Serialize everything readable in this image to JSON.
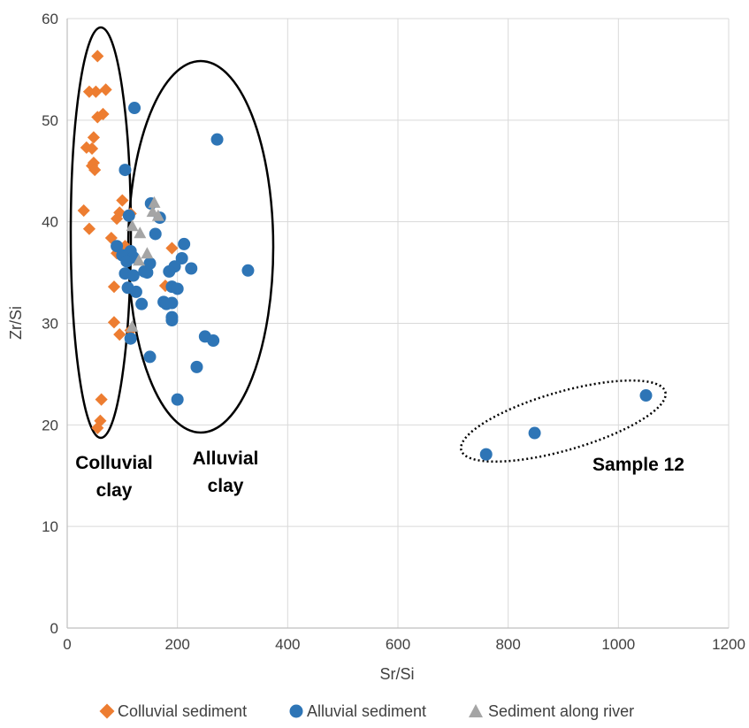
{
  "chart_data": {
    "type": "scatter",
    "xlabel": "Sr/Si",
    "ylabel": "Zr/Si",
    "xlim": [
      0,
      1200
    ],
    "ylim": [
      0,
      60
    ],
    "xticks": [
      0,
      200,
      400,
      600,
      800,
      1000,
      1200
    ],
    "yticks": [
      0,
      10,
      20,
      30,
      40,
      50,
      60
    ],
    "grid": true,
    "legend_position": "bottom",
    "series": [
      {
        "name": "Colluvial sediment",
        "marker": "diamond",
        "color": "#ED7D31",
        "points": [
          [
            55,
            56.3
          ],
          [
            40,
            52.8
          ],
          [
            52,
            52.8
          ],
          [
            70,
            53.0
          ],
          [
            65,
            50.6
          ],
          [
            55,
            50.3
          ],
          [
            48,
            48.3
          ],
          [
            35,
            47.3
          ],
          [
            45,
            47.2
          ],
          [
            48,
            45.8
          ],
          [
            45,
            45.5
          ],
          [
            50,
            45.1
          ],
          [
            100,
            42.1
          ],
          [
            30,
            41.1
          ],
          [
            95,
            40.9
          ],
          [
            115,
            40.8
          ],
          [
            90,
            40.3
          ],
          [
            40,
            39.3
          ],
          [
            80,
            38.4
          ],
          [
            105,
            37.6
          ],
          [
            190,
            37.4
          ],
          [
            90,
            36.9
          ],
          [
            115,
            36.4
          ],
          [
            190,
            35.3
          ],
          [
            85,
            33.6
          ],
          [
            178,
            33.7
          ],
          [
            85,
            30.1
          ],
          [
            95,
            28.9
          ],
          [
            115,
            29.3
          ],
          [
            62,
            22.5
          ],
          [
            60,
            20.4
          ],
          [
            55,
            19.7
          ]
        ]
      },
      {
        "name": "Alluvial sediment",
        "marker": "circle",
        "color": "#2E75B6",
        "points": [
          [
            122,
            51.2
          ],
          [
            272,
            48.1
          ],
          [
            105,
            45.1
          ],
          [
            152,
            41.8
          ],
          [
            112,
            40.6
          ],
          [
            168,
            40.4
          ],
          [
            160,
            38.8
          ],
          [
            212,
            37.8
          ],
          [
            90,
            37.6
          ],
          [
            115,
            37.1
          ],
          [
            100,
            36.7
          ],
          [
            120,
            36.5
          ],
          [
            108,
            36.1
          ],
          [
            208,
            36.4
          ],
          [
            150,
            35.9
          ],
          [
            195,
            35.6
          ],
          [
            225,
            35.4
          ],
          [
            328,
            35.2
          ],
          [
            140,
            35.1
          ],
          [
            145,
            35.0
          ],
          [
            185,
            35.1
          ],
          [
            105,
            34.9
          ],
          [
            120,
            34.7
          ],
          [
            190,
            33.6
          ],
          [
            200,
            33.4
          ],
          [
            110,
            33.5
          ],
          [
            125,
            33.1
          ],
          [
            175,
            32.1
          ],
          [
            180,
            31.9
          ],
          [
            190,
            32.0
          ],
          [
            135,
            31.9
          ],
          [
            190,
            30.6
          ],
          [
            190,
            30.3
          ],
          [
            250,
            28.7
          ],
          [
            265,
            28.3
          ],
          [
            115,
            28.5
          ],
          [
            150,
            26.7
          ],
          [
            235,
            25.7
          ],
          [
            200,
            22.5
          ],
          [
            1050,
            22.9
          ],
          [
            848,
            19.2
          ],
          [
            760,
            17.1
          ]
        ]
      },
      {
        "name": "Sediment along river",
        "marker": "triangle",
        "color": "#A5A5A5",
        "points": [
          [
            158,
            41.9
          ],
          [
            155,
            41.0
          ],
          [
            165,
            40.6
          ],
          [
            118,
            39.6
          ],
          [
            132,
            38.9
          ],
          [
            145,
            36.9
          ],
          [
            130,
            36.2
          ],
          [
            118,
            29.7
          ]
        ]
      }
    ],
    "annotations": [
      {
        "lines": [
          "Colluvial",
          "clay"
        ]
      },
      {
        "lines": [
          "Alluvial",
          "clay"
        ]
      },
      {
        "lines": [
          "Sample 12"
        ]
      }
    ]
  },
  "colors": {
    "gridline": "#D9D9D9",
    "axis": "#BFBFBF"
  }
}
